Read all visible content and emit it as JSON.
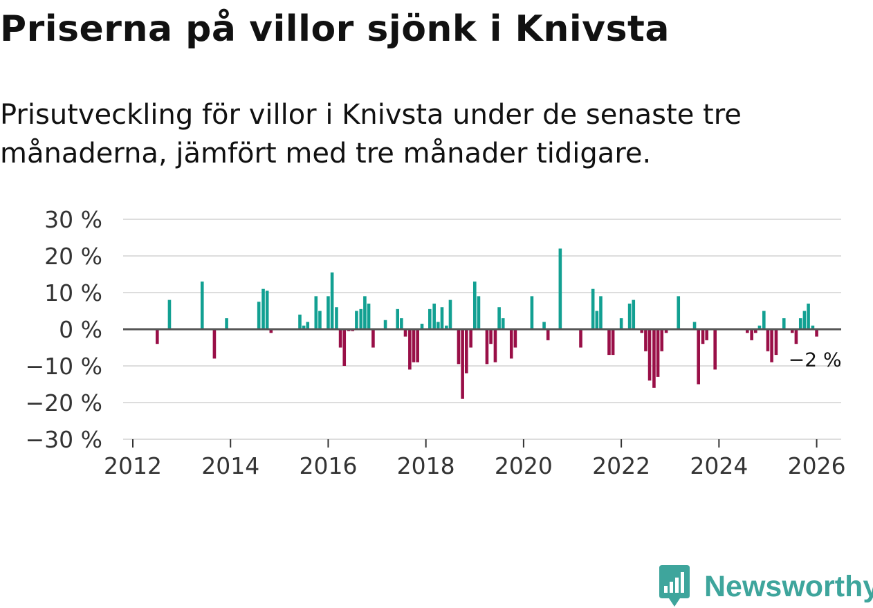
{
  "header": {
    "title": "Priserna på villor sjönk i Knivsta",
    "subtitle": "Prisutveckling för villor i Knivsta under de senaste tre månaderna, jämfört med tre månader tidigare."
  },
  "brand": {
    "name": "Newsworthy",
    "icon": "newsworthy-logo-icon",
    "color": "#3ea59c"
  },
  "colors": {
    "positive": "#12a092",
    "negative": "#990f47",
    "grid": "#dddddd",
    "zero": "#555555"
  },
  "chart_data": {
    "type": "bar",
    "title": "Priserna på villor sjönk i Knivsta",
    "xlabel": "",
    "ylabel": "",
    "ylim": [
      -30,
      30
    ],
    "xlim": [
      2012,
      2026.7
    ],
    "y_ticks": [
      30,
      20,
      10,
      0,
      -10,
      -20,
      -30
    ],
    "y_tick_labels": [
      "30 %",
      "20 %",
      "10 %",
      "0 %",
      "−10 %",
      "−20 %",
      "−30 %"
    ],
    "x_ticks": [
      2012,
      2014,
      2016,
      2018,
      2020,
      2022,
      2024,
      2026
    ],
    "x_tick_labels": [
      "2012",
      "2014",
      "2016",
      "2018",
      "2020",
      "2022",
      "2024",
      "2026"
    ],
    "last_value_label": "−2 %",
    "series": [
      {
        "name": "Prisutveckling",
        "points": [
          {
            "x": 2012.5,
            "y": -4
          },
          {
            "x": 2012.75,
            "y": 8
          },
          {
            "x": 2013.42,
            "y": 13
          },
          {
            "x": 2013.67,
            "y": -8
          },
          {
            "x": 2013.92,
            "y": 3
          },
          {
            "x": 2014.58,
            "y": 7.5
          },
          {
            "x": 2014.67,
            "y": 11
          },
          {
            "x": 2014.75,
            "y": 10.5
          },
          {
            "x": 2014.83,
            "y": -1
          },
          {
            "x": 2015.42,
            "y": 4
          },
          {
            "x": 2015.5,
            "y": 1
          },
          {
            "x": 2015.58,
            "y": 2
          },
          {
            "x": 2015.75,
            "y": 9
          },
          {
            "x": 2015.83,
            "y": 5
          },
          {
            "x": 2016.0,
            "y": 9
          },
          {
            "x": 2016.08,
            "y": 15.5
          },
          {
            "x": 2016.17,
            "y": 6
          },
          {
            "x": 2016.25,
            "y": -5
          },
          {
            "x": 2016.33,
            "y": -10
          },
          {
            "x": 2016.42,
            "y": -0.5
          },
          {
            "x": 2016.5,
            "y": -0.5
          },
          {
            "x": 2016.58,
            "y": 5
          },
          {
            "x": 2016.67,
            "y": 5.5
          },
          {
            "x": 2016.75,
            "y": 9
          },
          {
            "x": 2016.83,
            "y": 7
          },
          {
            "x": 2016.92,
            "y": -5
          },
          {
            "x": 2017.17,
            "y": 2.5
          },
          {
            "x": 2017.42,
            "y": 5.5
          },
          {
            "x": 2017.5,
            "y": 3
          },
          {
            "x": 2017.58,
            "y": -2
          },
          {
            "x": 2017.67,
            "y": -11
          },
          {
            "x": 2017.75,
            "y": -9
          },
          {
            "x": 2017.83,
            "y": -9
          },
          {
            "x": 2017.92,
            "y": 1.5
          },
          {
            "x": 2018.08,
            "y": 5.5
          },
          {
            "x": 2018.17,
            "y": 7
          },
          {
            "x": 2018.25,
            "y": 2
          },
          {
            "x": 2018.33,
            "y": 6
          },
          {
            "x": 2018.42,
            "y": 1
          },
          {
            "x": 2018.5,
            "y": 8
          },
          {
            "x": 2018.67,
            "y": -9.5
          },
          {
            "x": 2018.75,
            "y": -19
          },
          {
            "x": 2018.83,
            "y": -12
          },
          {
            "x": 2018.92,
            "y": -5
          },
          {
            "x": 2019.0,
            "y": 13
          },
          {
            "x": 2019.08,
            "y": 9
          },
          {
            "x": 2019.25,
            "y": -9.5
          },
          {
            "x": 2019.33,
            "y": -4
          },
          {
            "x": 2019.42,
            "y": -9
          },
          {
            "x": 2019.5,
            "y": 6
          },
          {
            "x": 2019.58,
            "y": 3
          },
          {
            "x": 2019.75,
            "y": -8
          },
          {
            "x": 2019.83,
            "y": -5
          },
          {
            "x": 2020.17,
            "y": 9
          },
          {
            "x": 2020.42,
            "y": 2
          },
          {
            "x": 2020.5,
            "y": -3
          },
          {
            "x": 2020.75,
            "y": 22
          },
          {
            "x": 2021.17,
            "y": -5
          },
          {
            "x": 2021.42,
            "y": 11
          },
          {
            "x": 2021.5,
            "y": 5
          },
          {
            "x": 2021.58,
            "y": 9
          },
          {
            "x": 2021.75,
            "y": -7
          },
          {
            "x": 2021.83,
            "y": -7
          },
          {
            "x": 2022.0,
            "y": 3
          },
          {
            "x": 2022.17,
            "y": 7
          },
          {
            "x": 2022.25,
            "y": 8
          },
          {
            "x": 2022.42,
            "y": -1
          },
          {
            "x": 2022.5,
            "y": -6
          },
          {
            "x": 2022.58,
            "y": -14
          },
          {
            "x": 2022.67,
            "y": -16
          },
          {
            "x": 2022.75,
            "y": -13
          },
          {
            "x": 2022.83,
            "y": -6
          },
          {
            "x": 2022.92,
            "y": -1
          },
          {
            "x": 2023.17,
            "y": 9
          },
          {
            "x": 2023.5,
            "y": 2
          },
          {
            "x": 2023.58,
            "y": -15
          },
          {
            "x": 2023.67,
            "y": -4
          },
          {
            "x": 2023.75,
            "y": -3
          },
          {
            "x": 2023.92,
            "y": -11
          },
          {
            "x": 2024.58,
            "y": -1
          },
          {
            "x": 2024.67,
            "y": -3
          },
          {
            "x": 2024.75,
            "y": -1
          },
          {
            "x": 2024.83,
            "y": 1
          },
          {
            "x": 2024.92,
            "y": 5
          },
          {
            "x": 2025.0,
            "y": -6
          },
          {
            "x": 2025.08,
            "y": -9
          },
          {
            "x": 2025.17,
            "y": -7
          },
          {
            "x": 2025.33,
            "y": 3
          },
          {
            "x": 2025.5,
            "y": -1
          },
          {
            "x": 2025.58,
            "y": -4
          },
          {
            "x": 2025.67,
            "y": 3
          },
          {
            "x": 2025.75,
            "y": 5
          },
          {
            "x": 2025.83,
            "y": 7
          },
          {
            "x": 2025.92,
            "y": 1
          },
          {
            "x": 2026.0,
            "y": -2
          }
        ]
      }
    ]
  }
}
